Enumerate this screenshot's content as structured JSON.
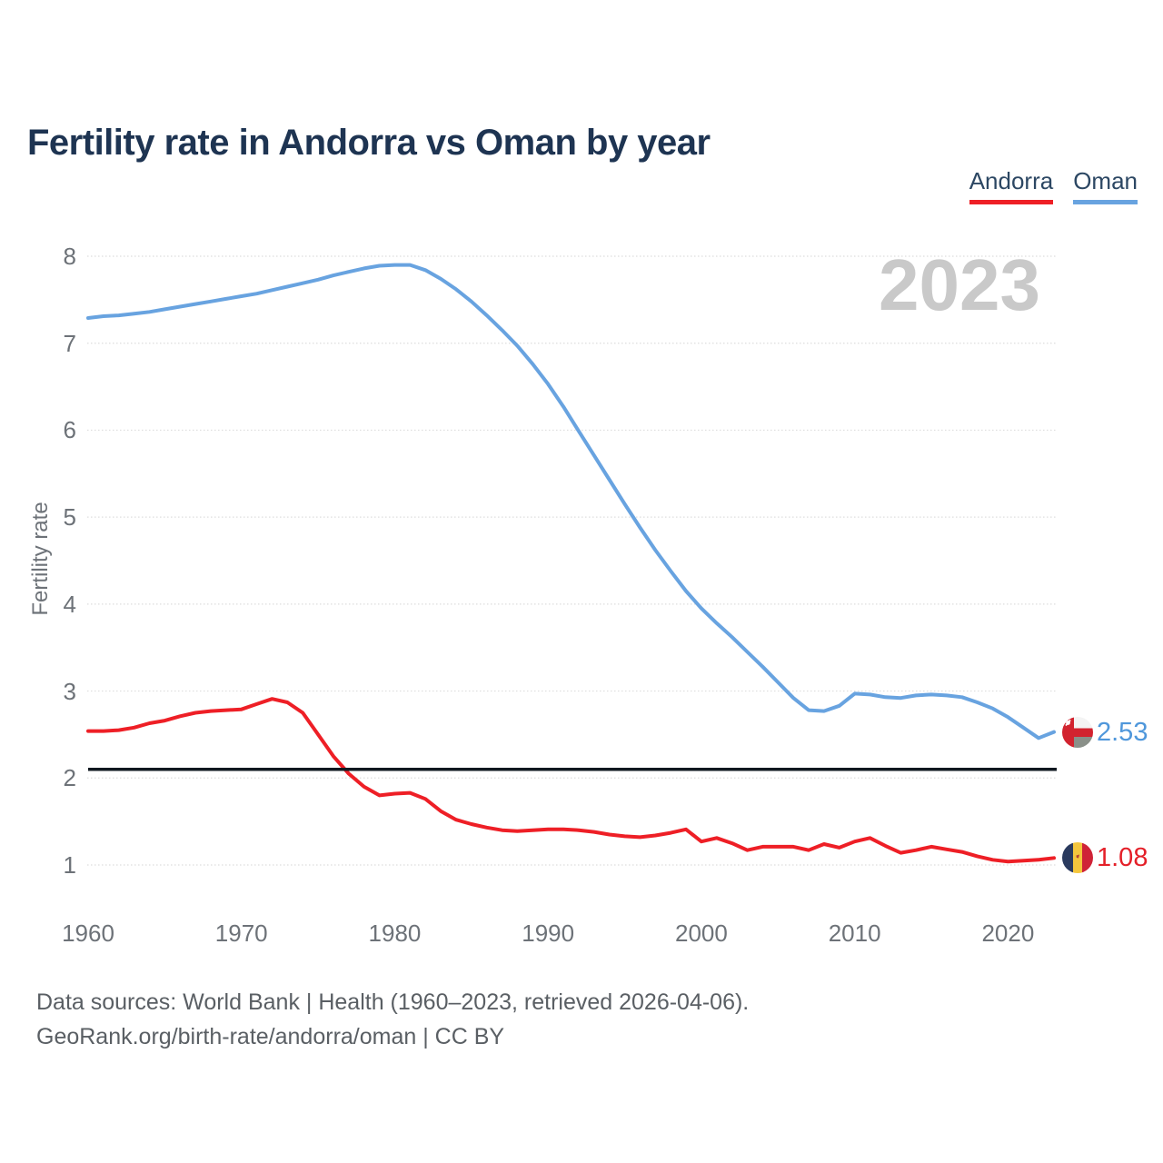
{
  "header": {
    "title": "Fertility rate in Andorra vs Oman by year"
  },
  "legend": [
    {
      "label": "Andorra",
      "color": "#ee1f26"
    },
    {
      "label": "Oman",
      "color": "#68a3e0"
    }
  ],
  "watermark": "2023",
  "y_axis": {
    "title": "Fertility rate",
    "ticks": [
      8,
      7,
      6,
      5,
      4,
      3,
      2,
      1
    ]
  },
  "x_axis": {
    "ticks": [
      1960,
      1970,
      1980,
      1990,
      2000,
      2010,
      2020
    ]
  },
  "footer": {
    "line1": "Data sources: World Bank | Health (1960–2023, retrieved 2026-04-06).",
    "line2": "GeoRank.org/birth-rate/andorra/oman | CC BY"
  },
  "colors": {
    "title": "#1e3452",
    "tick_text": "#6d7278",
    "grid": "#dddddd",
    "reference_line": "#101820",
    "watermark": "#c9c9c9",
    "andorra": "#ee1f26",
    "oman": "#68a3e0"
  },
  "chart_data": {
    "type": "line",
    "title": "Fertility rate in Andorra vs Oman by year",
    "xlabel": "",
    "ylabel": "Fertility rate",
    "x_range": [
      1960,
      2023
    ],
    "y_range": [
      1,
      8
    ],
    "grid": true,
    "legend_position": "top-right",
    "reference_line": {
      "value": 2.1,
      "color": "#101820"
    },
    "x": [
      1960,
      1961,
      1962,
      1963,
      1964,
      1965,
      1966,
      1967,
      1968,
      1969,
      1970,
      1971,
      1972,
      1973,
      1974,
      1975,
      1976,
      1977,
      1978,
      1979,
      1980,
      1981,
      1982,
      1983,
      1984,
      1985,
      1986,
      1987,
      1988,
      1989,
      1990,
      1991,
      1992,
      1993,
      1994,
      1995,
      1996,
      1997,
      1998,
      1999,
      2000,
      2001,
      2002,
      2003,
      2004,
      2005,
      2006,
      2007,
      2008,
      2009,
      2010,
      2011,
      2012,
      2013,
      2014,
      2015,
      2016,
      2017,
      2018,
      2019,
      2020,
      2021,
      2022,
      2023
    ],
    "series": [
      {
        "name": "Andorra",
        "color": "#ee1f26",
        "end_label": "1.08",
        "end_value": 1.08,
        "values": [
          2.54,
          2.54,
          2.55,
          2.58,
          2.63,
          2.66,
          2.71,
          2.75,
          2.77,
          2.78,
          2.79,
          2.85,
          2.91,
          2.87,
          2.75,
          2.5,
          2.25,
          2.05,
          1.9,
          1.8,
          1.82,
          1.83,
          1.76,
          1.62,
          1.52,
          1.47,
          1.43,
          1.4,
          1.39,
          1.4,
          1.41,
          1.41,
          1.4,
          1.38,
          1.35,
          1.33,
          1.32,
          1.34,
          1.37,
          1.41,
          1.27,
          1.31,
          1.25,
          1.17,
          1.21,
          1.21,
          1.21,
          1.17,
          1.24,
          1.2,
          1.27,
          1.31,
          1.22,
          1.14,
          1.17,
          1.21,
          1.18,
          1.15,
          1.1,
          1.06,
          1.04,
          1.05,
          1.06,
          1.08
        ]
      },
      {
        "name": "Oman",
        "color": "#68a3e0",
        "end_label": "2.53",
        "end_value": 2.53,
        "values": [
          7.29,
          7.31,
          7.32,
          7.34,
          7.36,
          7.39,
          7.42,
          7.45,
          7.48,
          7.51,
          7.54,
          7.57,
          7.61,
          7.65,
          7.69,
          7.73,
          7.78,
          7.82,
          7.86,
          7.89,
          7.9,
          7.9,
          7.84,
          7.74,
          7.62,
          7.48,
          7.32,
          7.15,
          6.97,
          6.76,
          6.53,
          6.27,
          5.99,
          5.71,
          5.43,
          5.15,
          4.88,
          4.62,
          4.38,
          4.15,
          3.95,
          3.78,
          3.62,
          3.45,
          3.28,
          3.1,
          2.92,
          2.78,
          2.77,
          2.83,
          2.97,
          2.96,
          2.93,
          2.92,
          2.95,
          2.96,
          2.95,
          2.93,
          2.87,
          2.8,
          2.7,
          2.58,
          2.46,
          2.53
        ]
      }
    ]
  }
}
